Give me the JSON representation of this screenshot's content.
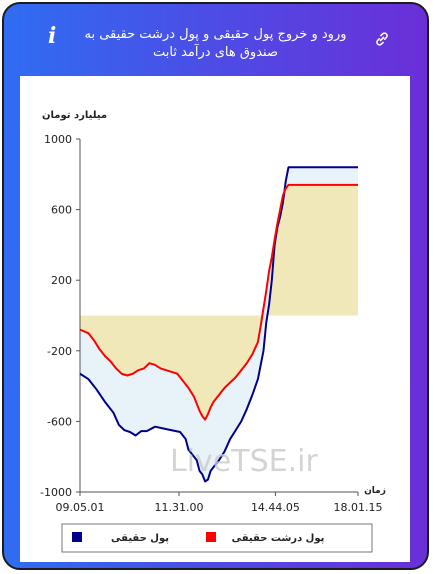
{
  "header": {
    "title": "ورود و خروج پول حقیقی و پول درشت حقیقی به صندوق های درآمد ثابت",
    "info_icon": "i",
    "link_icon": "link-icon"
  },
  "colors": {
    "accent_gradient": [
      "#2f6df3",
      "#6a2fd8"
    ],
    "series_navy": "#00008b",
    "series_red": "#ff0000",
    "fill_positive": "#f0e8b8",
    "fill_negative": "#e6f2f8"
  },
  "watermark": "LiveTSE.ir",
  "chart_data": {
    "type": "line",
    "ylabel": "میلیارد تومان",
    "xlabel": "زمان",
    "ylim": [
      -1000,
      1000
    ],
    "yticks": [
      1000,
      600,
      200,
      -200,
      -600,
      -1000
    ],
    "xlim": [
      0,
      100
    ],
    "xticks": [
      {
        "x": 0,
        "label": "09.05.01"
      },
      {
        "x": 35.6,
        "label": "11.31.00"
      },
      {
        "x": 70.3,
        "label": "14.44.05"
      },
      {
        "x": 100,
        "label": "18.01.15"
      }
    ],
    "legend_position": "bottom",
    "series": [
      {
        "name": "پول حقیقی",
        "color": "#00008b",
        "points": [
          [
            0,
            -330
          ],
          [
            3,
            -360
          ],
          [
            6,
            -420
          ],
          [
            9,
            -490
          ],
          [
            12,
            -550
          ],
          [
            14,
            -620
          ],
          [
            16,
            -650
          ],
          [
            18,
            -660
          ],
          [
            20,
            -680
          ],
          [
            22,
            -655
          ],
          [
            24,
            -655
          ],
          [
            27,
            -630
          ],
          [
            30,
            -640
          ],
          [
            33,
            -650
          ],
          [
            36,
            -660
          ],
          [
            38,
            -700
          ],
          [
            39,
            -760
          ],
          [
            40,
            -780
          ],
          [
            42,
            -820
          ],
          [
            43,
            -880
          ],
          [
            44,
            -900
          ],
          [
            45,
            -940
          ],
          [
            46,
            -930
          ],
          [
            47,
            -880
          ],
          [
            48,
            -860
          ],
          [
            50,
            -820
          ],
          [
            52,
            -770
          ],
          [
            54,
            -700
          ],
          [
            56,
            -650
          ],
          [
            58,
            -600
          ],
          [
            60,
            -530
          ],
          [
            62,
            -450
          ],
          [
            64,
            -360
          ],
          [
            66,
            -200
          ],
          [
            67,
            -40
          ],
          [
            68,
            60
          ],
          [
            69,
            200
          ],
          [
            70,
            400
          ],
          [
            71,
            500
          ],
          [
            72,
            560
          ],
          [
            73,
            640
          ],
          [
            74,
            760
          ],
          [
            75,
            840
          ],
          [
            80,
            840
          ],
          [
            86,
            840
          ],
          [
            95,
            840
          ],
          [
            100,
            840
          ]
        ]
      },
      {
        "name": "پول درشت حقیقی",
        "color": "#ff0000",
        "points": [
          [
            0,
            -80
          ],
          [
            3,
            -100
          ],
          [
            5,
            -140
          ],
          [
            7,
            -190
          ],
          [
            9,
            -230
          ],
          [
            11,
            -260
          ],
          [
            13,
            -300
          ],
          [
            15,
            -330
          ],
          [
            17,
            -340
          ],
          [
            19,
            -330
          ],
          [
            21,
            -310
          ],
          [
            23,
            -300
          ],
          [
            25,
            -270
          ],
          [
            27,
            -280
          ],
          [
            29,
            -300
          ],
          [
            31,
            -310
          ],
          [
            33,
            -320
          ],
          [
            35,
            -330
          ],
          [
            37,
            -370
          ],
          [
            39,
            -410
          ],
          [
            41,
            -460
          ],
          [
            42,
            -500
          ],
          [
            43,
            -540
          ],
          [
            44,
            -570
          ],
          [
            45,
            -590
          ],
          [
            46,
            -560
          ],
          [
            47,
            -520
          ],
          [
            48,
            -490
          ],
          [
            50,
            -450
          ],
          [
            52,
            -410
          ],
          [
            54,
            -380
          ],
          [
            56,
            -350
          ],
          [
            58,
            -310
          ],
          [
            60,
            -270
          ],
          [
            62,
            -220
          ],
          [
            64,
            -150
          ],
          [
            65,
            -60
          ],
          [
            66,
            40
          ],
          [
            67,
            140
          ],
          [
            68,
            250
          ],
          [
            69,
            330
          ],
          [
            70,
            430
          ],
          [
            71,
            520
          ],
          [
            72,
            600
          ],
          [
            73,
            680
          ],
          [
            74,
            720
          ],
          [
            75,
            740
          ],
          [
            80,
            740
          ],
          [
            86,
            740
          ],
          [
            95,
            740
          ],
          [
            100,
            740
          ]
        ]
      }
    ]
  }
}
